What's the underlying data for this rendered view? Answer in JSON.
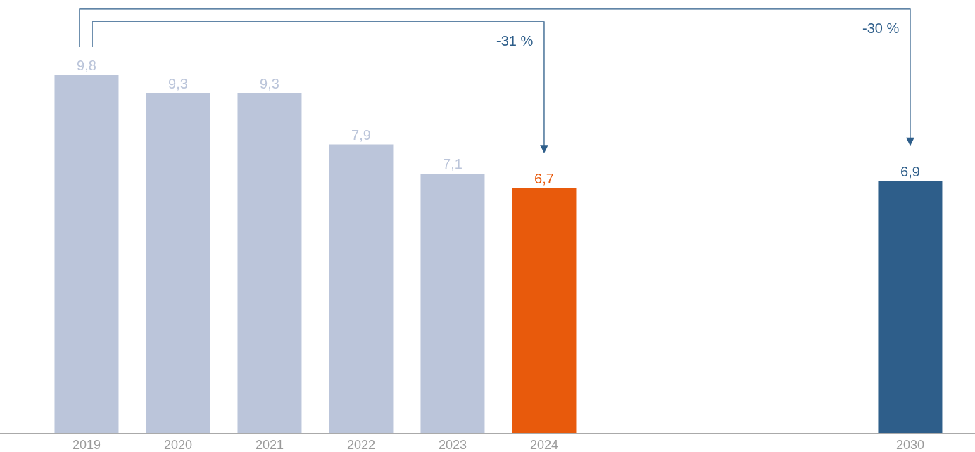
{
  "chart_data": {
    "type": "bar",
    "categories": [
      "2019",
      "2020",
      "2021",
      "2022",
      "2023",
      "2024",
      null,
      null,
      null,
      "2030"
    ],
    "values": [
      9.8,
      9.3,
      9.3,
      7.9,
      7.1,
      6.7,
      null,
      null,
      null,
      6.9
    ],
    "colors": [
      "#bbc5da",
      "#bbc5da",
      "#bbc5da",
      "#bbc5da",
      "#bbc5da",
      "#e85a0c",
      null,
      null,
      null,
      "#2e5e8a"
    ],
    "value_labels": [
      "9,8",
      "9,3",
      "9,3",
      "7,9",
      "7,1",
      "6,7",
      null,
      null,
      null,
      "6,9"
    ],
    "annotations": [
      "-31 %",
      "-30 %"
    ],
    "legend": false
  }
}
